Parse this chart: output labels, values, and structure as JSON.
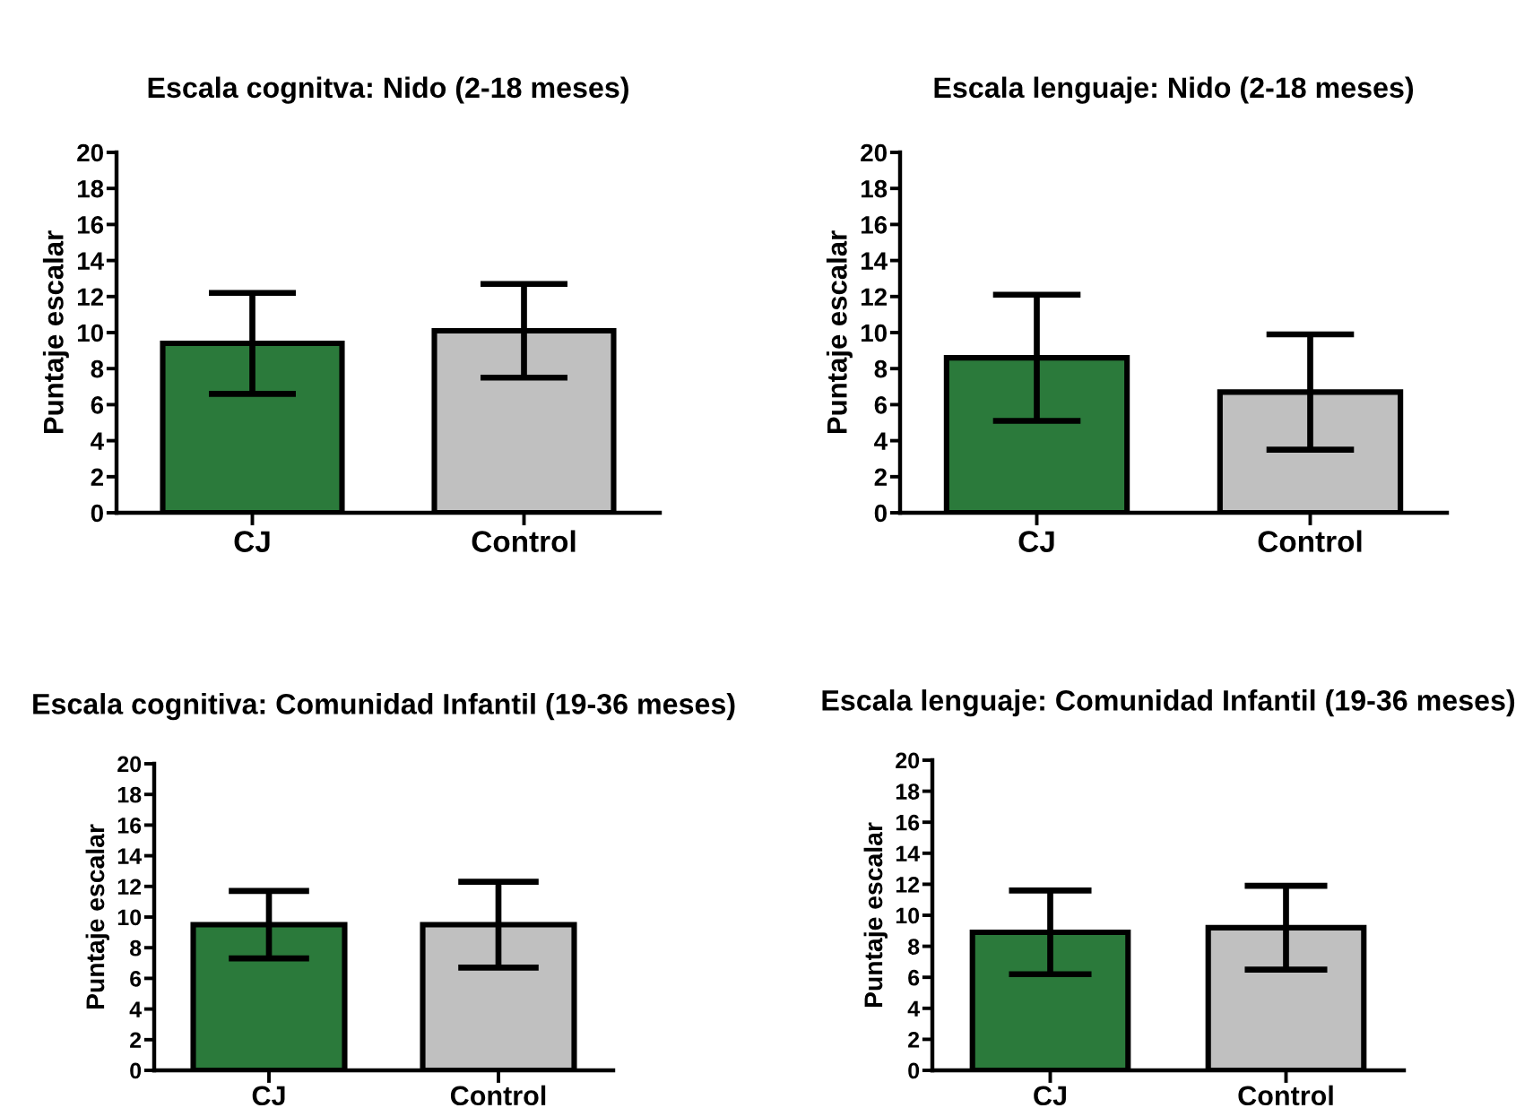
{
  "chart_data": [
    {
      "type": "bar",
      "title": "Escala cognitva: Nido (2-18 meses)",
      "ylabel": "Puntaje escalar",
      "categories": [
        "CJ",
        "Control"
      ],
      "values": [
        9.4,
        10.1
      ],
      "errors": [
        2.8,
        2.6
      ],
      "colors": [
        "#2b7a3b",
        "#c0c0c0"
      ],
      "ylim": [
        0,
        20
      ],
      "yticks": [
        0,
        2,
        4,
        6,
        8,
        10,
        12,
        14,
        16,
        18,
        20
      ]
    },
    {
      "type": "bar",
      "title": "Escala lenguaje: Nido (2-18 meses)",
      "ylabel": "Puntaje escalar",
      "categories": [
        "CJ",
        "Control"
      ],
      "values": [
        8.6,
        6.7
      ],
      "errors": [
        3.5,
        3.2
      ],
      "colors": [
        "#2b7a3b",
        "#c0c0c0"
      ],
      "ylim": [
        0,
        20
      ],
      "yticks": [
        0,
        2,
        4,
        6,
        8,
        10,
        12,
        14,
        16,
        18,
        20
      ]
    },
    {
      "type": "bar",
      "title": "Escala cognitiva: Comunidad Infantil (19-36 meses)",
      "ylabel": "Puntaje escalar",
      "categories": [
        "CJ",
        "Control"
      ],
      "values": [
        9.5,
        9.5
      ],
      "errors": [
        2.2,
        2.8
      ],
      "colors": [
        "#2b7a3b",
        "#c0c0c0"
      ],
      "ylim": [
        0,
        20
      ],
      "yticks": [
        0,
        2,
        4,
        6,
        8,
        10,
        12,
        14,
        16,
        18,
        20
      ]
    },
    {
      "type": "bar",
      "title": "Escala lenguaje: Comunidad Infantil (19-36 meses)",
      "ylabel": "Puntaje escalar",
      "categories": [
        "CJ",
        "Control"
      ],
      "values": [
        8.9,
        9.2
      ],
      "errors": [
        2.7,
        2.7
      ],
      "colors": [
        "#2b7a3b",
        "#c0c0c0"
      ],
      "ylim": [
        0,
        20
      ],
      "yticks": [
        0,
        2,
        4,
        6,
        8,
        10,
        12,
        14,
        16,
        18,
        20
      ]
    }
  ]
}
